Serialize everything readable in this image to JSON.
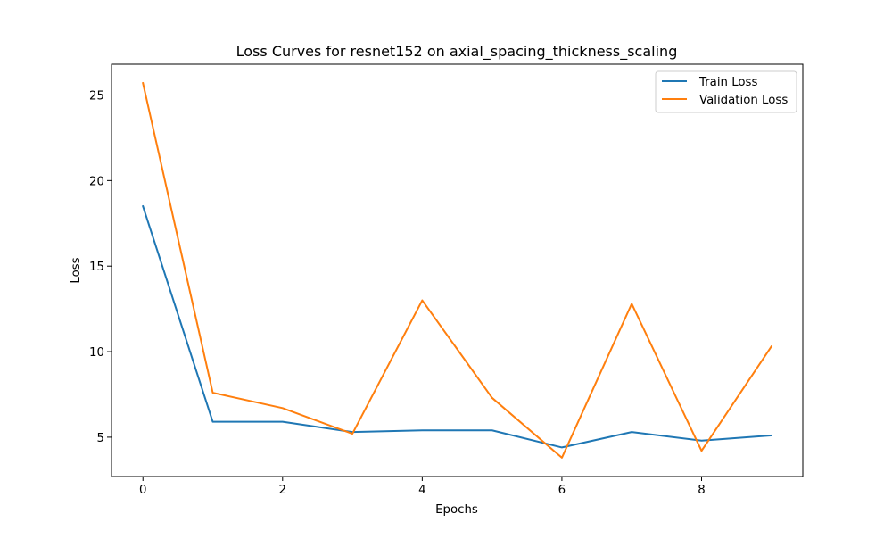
{
  "chart_data": {
    "type": "line",
    "title": "Loss Curves for resnet152 on axial_spacing_thickness_scaling",
    "xlabel": "Epochs",
    "ylabel": "Loss",
    "x": [
      0,
      1,
      2,
      3,
      4,
      5,
      6,
      7,
      8,
      9
    ],
    "xlim": [
      -0.45,
      9.45
    ],
    "ylim": [
      2.7,
      26.8
    ],
    "xticks": [
      0,
      2,
      4,
      6,
      8
    ],
    "yticks": [
      5,
      10,
      15,
      20,
      25
    ],
    "grid": false,
    "legend_position": "upper-right",
    "series": [
      {
        "name": "Train Loss",
        "color": "#1f77b4",
        "values": [
          18.5,
          5.9,
          5.9,
          5.3,
          5.4,
          5.4,
          4.4,
          5.3,
          4.8,
          5.1
        ]
      },
      {
        "name": "Validation Loss",
        "color": "#ff7f0e",
        "values": [
          25.7,
          7.6,
          6.7,
          5.2,
          13.0,
          7.3,
          3.8,
          12.8,
          4.2,
          10.3
        ]
      }
    ]
  }
}
